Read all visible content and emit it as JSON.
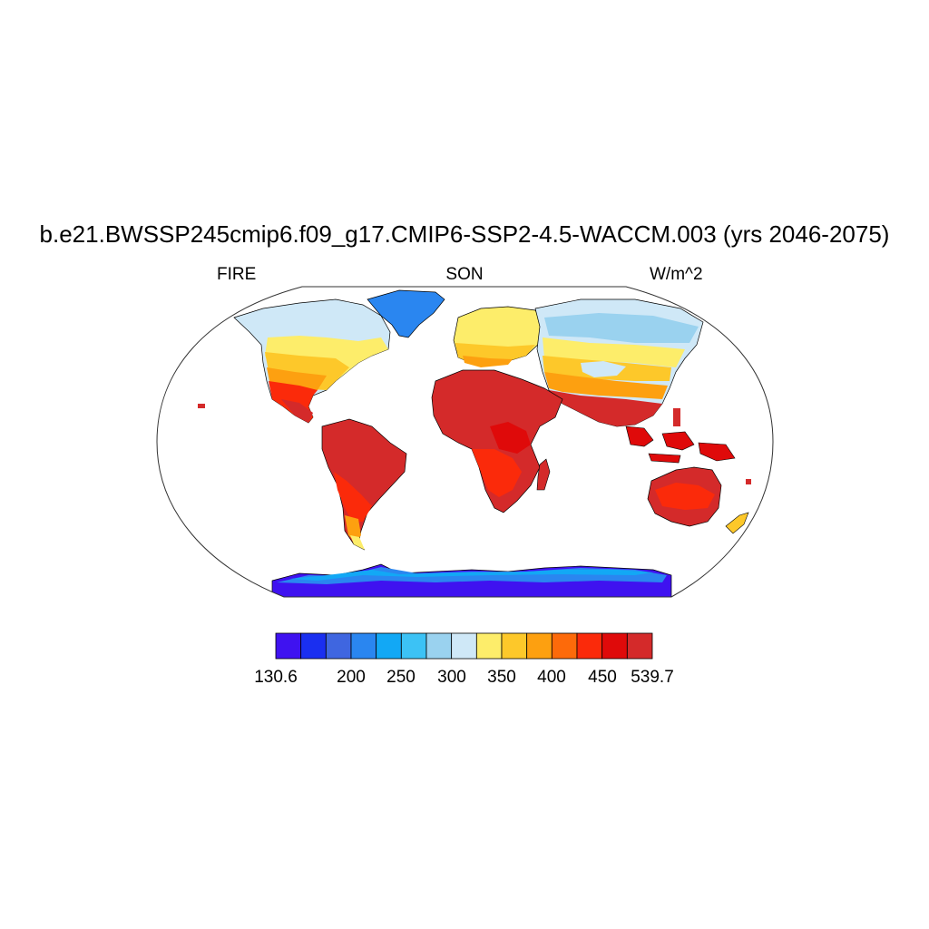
{
  "title": "b.e21.BWSSP245cmip6.f09_g17.CMIP6-SSP2-4.5-WACCM.003 (yrs 2046-2075)",
  "left_label": "FIRE",
  "center_label": "SON",
  "right_label": "W/m^2",
  "colorbar": {
    "colors": [
      "#3f12f0",
      "#1a2ff0",
      "#3f66e0",
      "#2a86f0",
      "#12a8f5",
      "#3cc2f5",
      "#9ad2ef",
      "#cfe8f7",
      "#fded6a",
      "#fdc82a",
      "#fda010",
      "#fd6a0a",
      "#fb2a0a",
      "#df0a0a",
      "#d42a2a"
    ],
    "tick_labels": [
      {
        "text": "130.6",
        "level": 0
      },
      {
        "text": "200",
        "level": 2
      },
      {
        "text": "250",
        "level": 3
      },
      {
        "text": "300",
        "level": 4
      },
      {
        "text": "350",
        "level": 5
      },
      {
        "text": "400",
        "level": 6
      },
      {
        "text": "450",
        "level": 7
      },
      {
        "text": "539.7",
        "level": 8
      }
    ]
  }
}
